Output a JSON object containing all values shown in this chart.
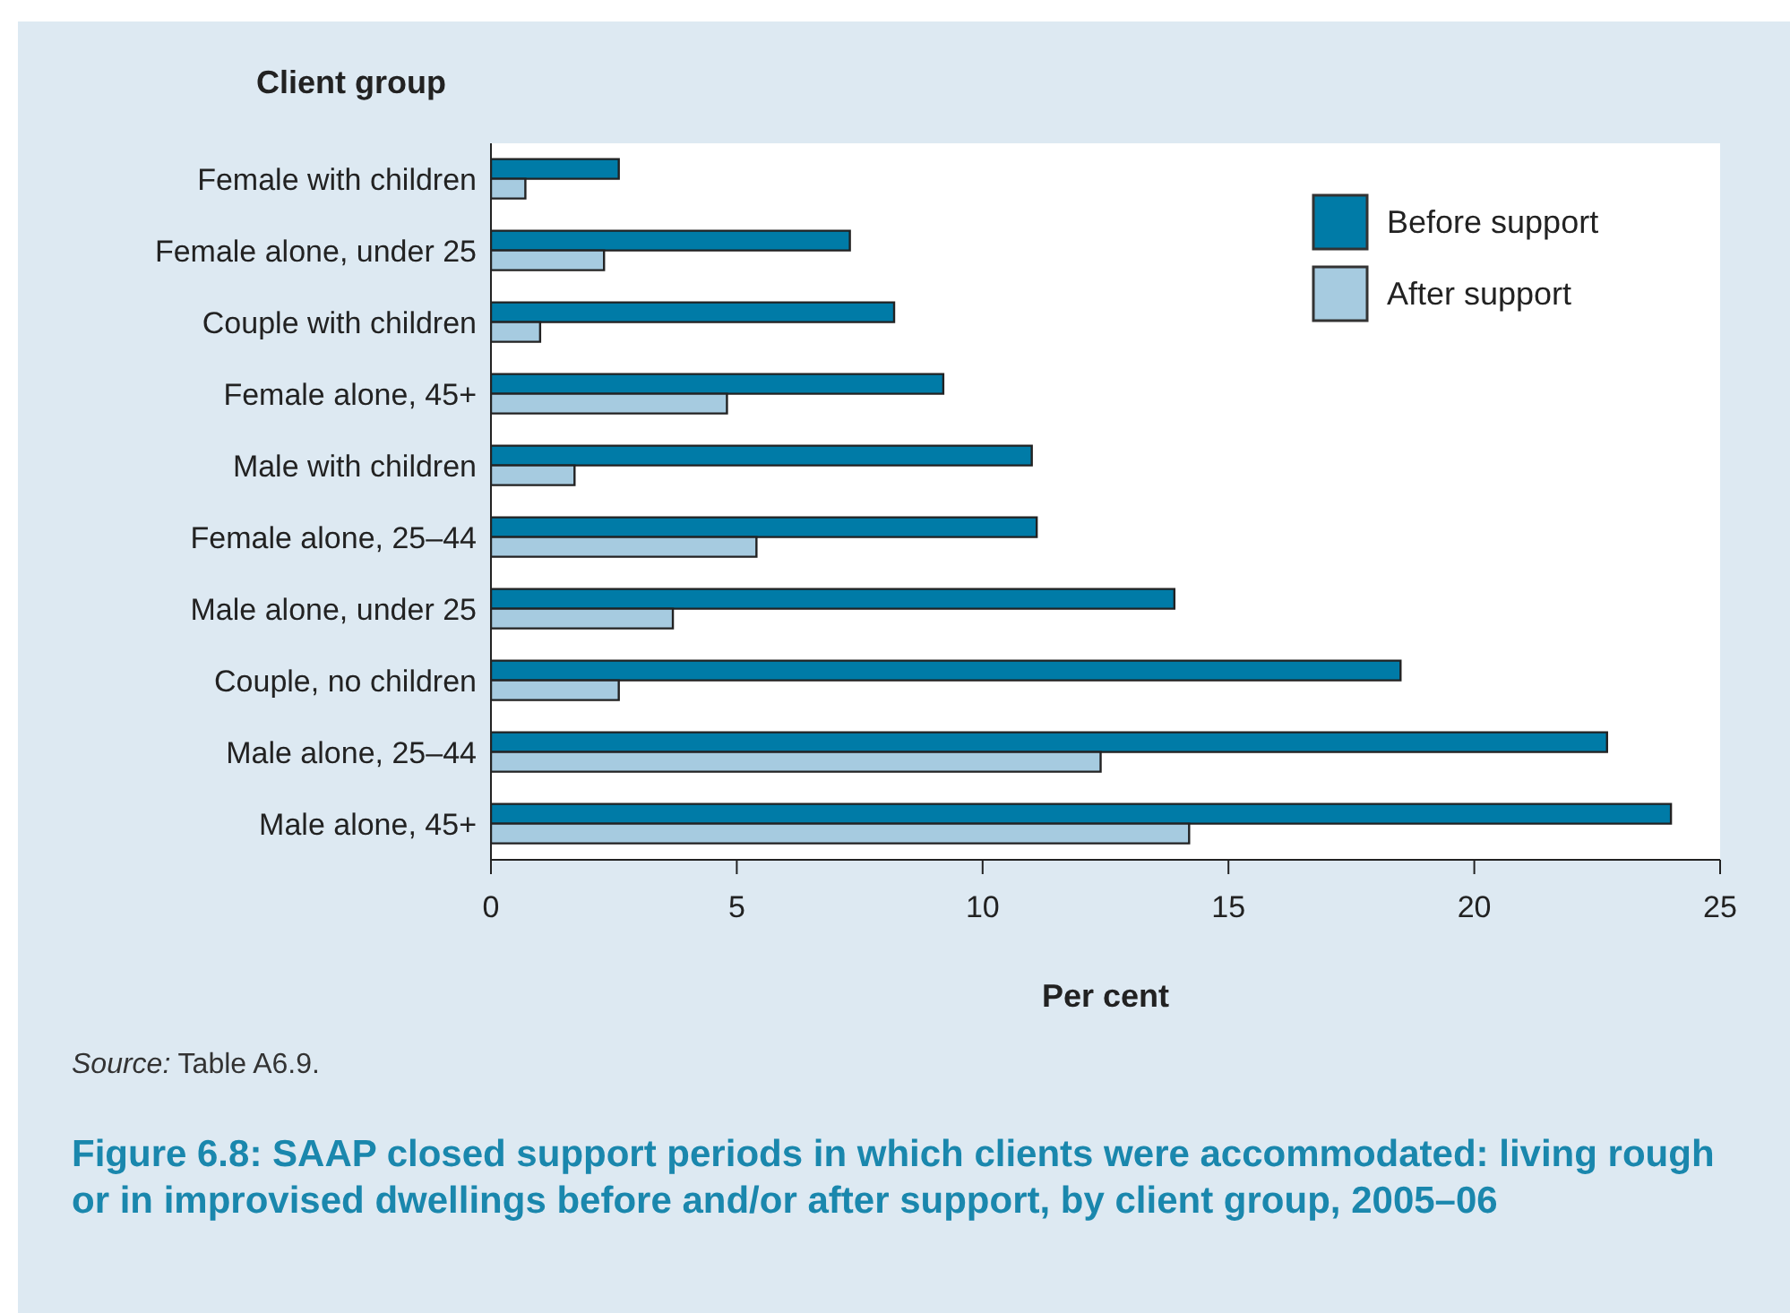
{
  "chart_data": {
    "type": "bar",
    "orientation": "horizontal",
    "title": "Figure 6.8: SAAP closed support periods in which clients were accommodated: living rough or in improvised dwellings before and/or after support, by client group, 2005–06",
    "ylabel": "Client group",
    "xlabel": "Per cent",
    "categories": [
      "Female with children",
      "Female alone, under 25",
      "Couple with children",
      "Female alone, 45+",
      "Male with children",
      "Female alone, 25–44",
      "Male alone, under 25",
      "Couple, no children",
      "Male alone, 25–44",
      "Male alone, 45+"
    ],
    "series": [
      {
        "name": "Before support",
        "color": "#007ba7",
        "values": [
          2.6,
          7.3,
          8.2,
          9.2,
          11.0,
          11.1,
          13.9,
          18.5,
          22.7,
          24.0
        ]
      },
      {
        "name": "After support",
        "color": "#a6cbe0",
        "values": [
          0.7,
          2.3,
          1.0,
          4.8,
          1.7,
          5.4,
          3.7,
          2.6,
          12.4,
          14.2
        ]
      }
    ],
    "xlim": [
      0,
      25
    ],
    "xticks": [
      0,
      5,
      10,
      15,
      20,
      25
    ],
    "grid": false,
    "legend": "top right",
    "annotations": [
      "Source: Table A6.9."
    ]
  }
}
